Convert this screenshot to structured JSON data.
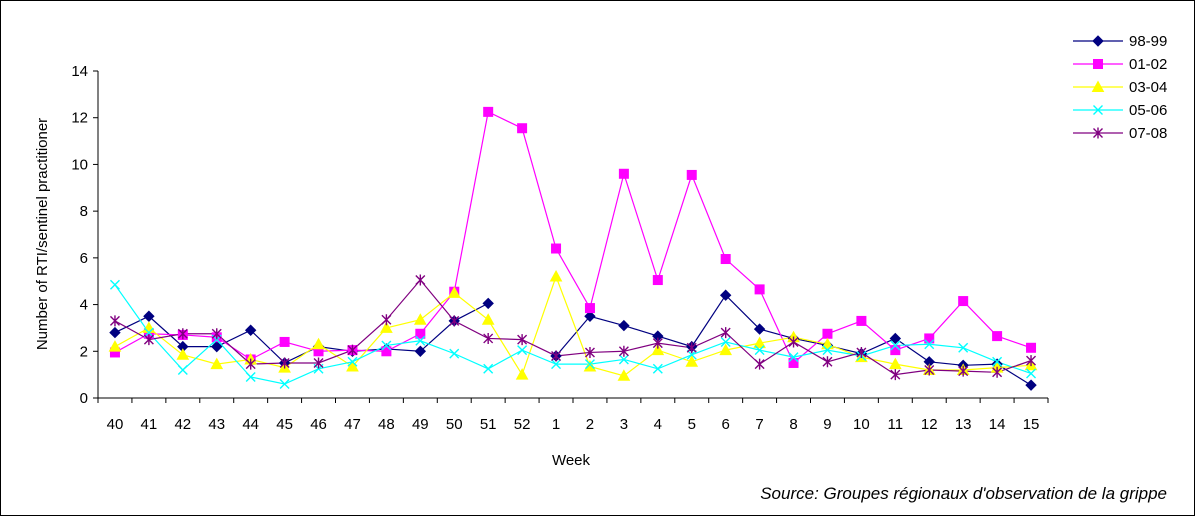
{
  "chart_data": {
    "type": "line",
    "title": "",
    "xlabel": "Week",
    "ylabel": "Number of RTI/sentinel practitioner",
    "ylim": [
      0,
      14
    ],
    "yticks": [
      0,
      2,
      4,
      6,
      8,
      10,
      12,
      14
    ],
    "grid": false,
    "legend_position": "top-right",
    "categories": [
      "40",
      "41",
      "42",
      "43",
      "44",
      "45",
      "46",
      "47",
      "48",
      "49",
      "50",
      "51",
      "52",
      "1",
      "2",
      "3",
      "4",
      "5",
      "6",
      "7",
      "8",
      "9",
      "10",
      "11",
      "12",
      "13",
      "14",
      "15"
    ],
    "series": [
      {
        "name": "98-99",
        "color": "#000080",
        "marker": "diamond",
        "values": [
          2.8,
          3.5,
          2.2,
          2.2,
          2.9,
          1.5,
          2.2,
          2.0,
          2.1,
          2.0,
          3.3,
          4.05,
          null,
          1.8,
          3.5,
          3.1,
          2.65,
          2.2,
          4.4,
          2.95,
          2.55,
          2.25,
          1.9,
          2.55,
          1.55,
          1.4,
          1.45,
          0.55
        ]
      },
      {
        "name": "01-02",
        "color": "#FF00FF",
        "marker": "square",
        "values": [
          1.95,
          2.75,
          2.7,
          2.6,
          1.65,
          2.4,
          2.0,
          2.05,
          2.0,
          2.75,
          4.55,
          12.25,
          11.55,
          6.4,
          3.85,
          9.6,
          5.05,
          9.55,
          5.95,
          4.65,
          1.5,
          2.75,
          3.3,
          2.05,
          2.55,
          4.15,
          2.65,
          2.15
        ]
      },
      {
        "name": "03-04",
        "color": "#FFFF00",
        "marker": "triangle",
        "values": [
          2.2,
          3.0,
          1.85,
          1.45,
          1.65,
          1.3,
          2.3,
          1.35,
          3.0,
          3.35,
          4.5,
          3.35,
          1.0,
          5.2,
          1.35,
          0.95,
          2.05,
          1.55,
          2.05,
          2.35,
          2.6,
          2.3,
          1.75,
          1.45,
          1.2,
          1.2,
          1.3,
          1.4
        ]
      },
      {
        "name": "05-06",
        "color": "#00FFFF",
        "marker": "x",
        "values": [
          4.85,
          2.8,
          1.2,
          2.5,
          0.9,
          0.6,
          1.25,
          1.55,
          2.25,
          2.45,
          1.9,
          1.25,
          2.05,
          1.45,
          1.45,
          1.65,
          1.25,
          1.85,
          2.4,
          2.05,
          1.75,
          2.05,
          1.8,
          2.25,
          2.3,
          2.15,
          1.55,
          1.05
        ]
      },
      {
        "name": "07-08",
        "color": "#800080",
        "marker": "star",
        "values": [
          3.3,
          2.5,
          2.75,
          2.75,
          1.45,
          1.5,
          1.5,
          2.05,
          3.35,
          5.05,
          3.3,
          2.55,
          2.5,
          1.8,
          1.95,
          2.0,
          2.35,
          2.15,
          2.8,
          1.45,
          2.4,
          1.55,
          1.95,
          1.0,
          1.2,
          1.15,
          1.1,
          1.6
        ]
      }
    ]
  },
  "source_text": "Source: Groupes régionaux d'observation de la grippe"
}
